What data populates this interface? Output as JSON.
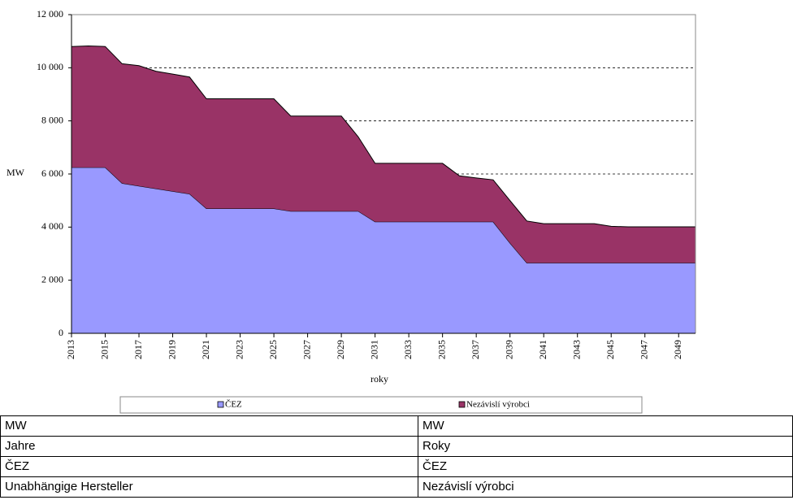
{
  "chart_data": {
    "type": "stacked_area",
    "ylabel": "MW",
    "xlabel": "roky",
    "x": [
      2013,
      2014,
      2015,
      2016,
      2017,
      2018,
      2019,
      2020,
      2021,
      2022,
      2023,
      2024,
      2025,
      2026,
      2027,
      2028,
      2029,
      2030,
      2031,
      2032,
      2033,
      2034,
      2035,
      2036,
      2037,
      2038,
      2039,
      2040,
      2041,
      2042,
      2043,
      2044,
      2045,
      2046,
      2047,
      2048,
      2049,
      2050
    ],
    "series": [
      {
        "name": "ČEZ",
        "color": "#9999ff",
        "values": [
          6250,
          6250,
          6250,
          5650,
          5550,
          5450,
          5350,
          5250,
          4700,
          4700,
          4700,
          4700,
          4700,
          4600,
          4600,
          4600,
          4600,
          4600,
          4200,
          4200,
          4200,
          4200,
          4200,
          4200,
          4200,
          4200,
          3400,
          2650,
          2650,
          2650,
          2650,
          2650,
          2650,
          2650,
          2650,
          2650,
          2650,
          2650
        ]
      },
      {
        "name": "Nezávislí výrobci",
        "color": "#993366",
        "values": [
          4550,
          4570,
          4550,
          4500,
          4530,
          4420,
          4410,
          4400,
          4130,
          4130,
          4130,
          4130,
          4130,
          3580,
          3580,
          3580,
          3580,
          2800,
          2200,
          2200,
          2200,
          2200,
          2200,
          1730,
          1650,
          1580,
          1600,
          1580,
          1480,
          1480,
          1480,
          1480,
          1380,
          1360,
          1360,
          1360,
          1360,
          1360
        ]
      }
    ],
    "xlim": [
      2013,
      2050
    ],
    "xticks": [
      2013,
      2015,
      2017,
      2019,
      2021,
      2023,
      2025,
      2027,
      2029,
      2031,
      2033,
      2035,
      2037,
      2039,
      2041,
      2043,
      2045,
      2047,
      2049
    ],
    "ylim": [
      0,
      12000
    ],
    "yticks": [
      0,
      {
        "value": 2000,
        "label": "2 000"
      },
      {
        "value": 4000,
        "label": "4 000"
      },
      {
        "value": 6000,
        "label": "6 000"
      },
      {
        "value": 8000,
        "label": "8 000"
      },
      {
        "value": 10000,
        "label": "10 000"
      },
      {
        "value": 12000,
        "label": "12 000"
      }
    ],
    "grid": true
  },
  "table": {
    "rows": [
      [
        "MW",
        "MW"
      ],
      [
        "Jahre",
        "Roky"
      ],
      [
        "ČEZ",
        "ČEZ"
      ],
      [
        "Unabhängige Hersteller",
        "Nezávislí výrobci"
      ]
    ]
  }
}
